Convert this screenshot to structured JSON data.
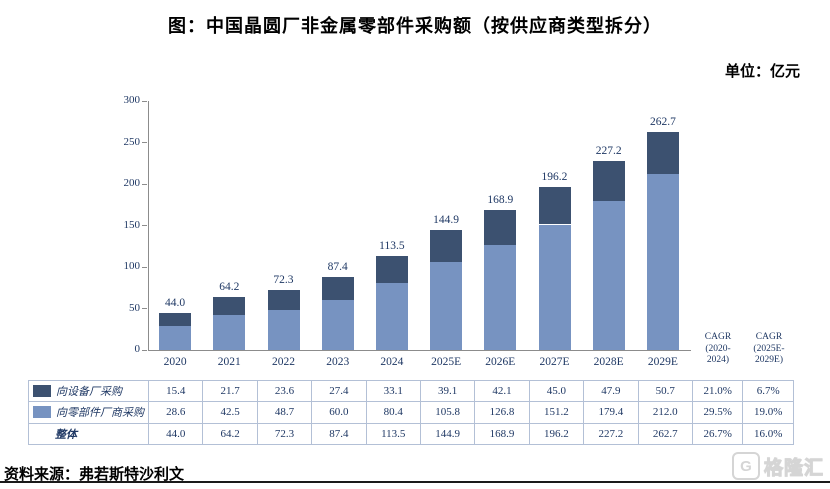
{
  "title": "图：中国晶圆厂非金属零部件采购额（按供应商类型拆分）",
  "unit_label": "单位：亿元",
  "source": "资料来源：弗若斯特沙利文",
  "watermark": {
    "icon": "G",
    "text": "格隆汇"
  },
  "colors": {
    "dark_series": "#3C5170",
    "light_series": "#7793C1",
    "value_text": "#1F3864",
    "axis": "#8c8c8c",
    "table_border": "#b3c0d6"
  },
  "chart_data": {
    "type": "bar",
    "stacked": true,
    "title": "中国晶圆厂非金属零部件采购额（按供应商类型拆分）",
    "unit": "亿元",
    "categories": [
      "2020",
      "2021",
      "2022",
      "2023",
      "2024",
      "2025E",
      "2026E",
      "2027E",
      "2028E",
      "2029E"
    ],
    "series": [
      {
        "name": "向设备厂采购",
        "color_key": "dark_series",
        "stack_order": "top",
        "values": [
          15.4,
          21.7,
          23.6,
          27.4,
          33.1,
          39.1,
          42.1,
          45.0,
          47.9,
          50.7
        ]
      },
      {
        "name": "向零部件厂商采购",
        "color_key": "light_series",
        "stack_order": "bottom",
        "values": [
          28.6,
          42.5,
          48.7,
          60.0,
          80.4,
          105.8,
          126.8,
          151.2,
          179.4,
          212.0
        ]
      }
    ],
    "totals": [
      44.0,
      64.2,
      72.3,
      87.4,
      113.5,
      144.9,
      168.9,
      196.2,
      227.2,
      262.7
    ],
    "ylim": [
      0,
      300
    ],
    "ytick_step": 50,
    "grid": false,
    "legend_position": "table-left",
    "value_labels": "totals-above-bars"
  },
  "table": {
    "cagr_headers": [
      {
        "lines": [
          "CAGR",
          "(2020-",
          "2024)"
        ]
      },
      {
        "lines": [
          "CAGR",
          "(2025E-",
          "2029E)"
        ]
      }
    ],
    "rows": [
      {
        "label": "向设备厂采购",
        "swatch": "dark_series",
        "bold": false,
        "values": [
          15.4,
          21.7,
          23.6,
          27.4,
          33.1,
          39.1,
          42.1,
          45.0,
          47.9,
          50.7
        ],
        "cagr1": "21.0%",
        "cagr2": "6.7%"
      },
      {
        "label": "向零部件厂商采购",
        "swatch": "light_series",
        "bold": false,
        "values": [
          28.6,
          42.5,
          48.7,
          60.0,
          80.4,
          105.8,
          126.8,
          151.2,
          179.4,
          212.0
        ],
        "cagr1": "29.5%",
        "cagr2": "19.0%"
      },
      {
        "label": "整体",
        "swatch": null,
        "bold": true,
        "values": [
          44.0,
          64.2,
          72.3,
          87.4,
          113.5,
          144.9,
          168.9,
          196.2,
          227.2,
          262.7
        ],
        "cagr1": "26.7%",
        "cagr2": "16.0%"
      }
    ]
  }
}
